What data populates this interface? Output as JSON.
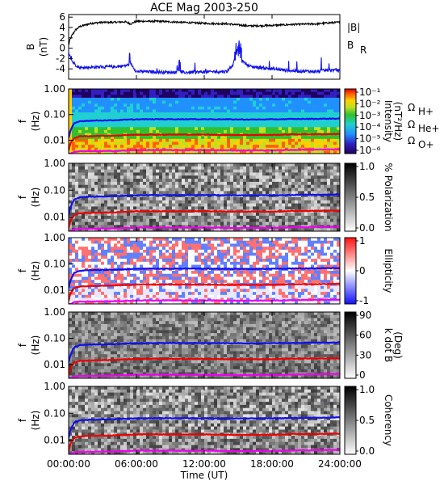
{
  "title": "ACE Mag 2003-250",
  "x_axis": {
    "label": "Time (UT)",
    "ticks": [
      "00:00:00",
      "06:00:00",
      "12:00:00",
      "18:00:00",
      "24:00:00"
    ],
    "range_hours": [
      0,
      24
    ]
  },
  "freq_ticks": [
    "1.00",
    "0.10",
    "0.01"
  ],
  "line_colors": {
    "h": "#1010ee",
    "he": "#ee0000",
    "o": "#ee00ee",
    "total": "#000000",
    "radial": "#1010ee"
  },
  "legend": {
    "total_field": "|B|",
    "radial_field_symbol": "B",
    "radial_field_sub": "R",
    "gyro_h": "Ω",
    "gyro_h_sub": "H+",
    "gyro_he": "Ω",
    "gyro_he_sub": "He+",
    "gyro_o": "Ω",
    "gyro_o_sub": "O+"
  },
  "panels": [
    {
      "kind": "line",
      "ylabel": "B",
      "yunit": "(nT)",
      "yticks": [
        "6",
        "4",
        "2",
        "0",
        "-2",
        "-4"
      ]
    },
    {
      "kind": "spectrogram",
      "ylabel": "f",
      "yunit": "(Hz)",
      "colorbar": "spectral",
      "cbar_label": "Intensity",
      "cbar_unit": "(nT²/Hz)",
      "cbar_ticks": [
        "10⁻¹",
        "10⁻²",
        "10⁻³",
        "10⁻⁴",
        "10⁻⁵",
        "10⁻⁶"
      ]
    },
    {
      "kind": "polarization",
      "ylabel": "f",
      "yunit": "(Hz)",
      "colorbar": "gray",
      "cbar_label": "% Polarization",
      "cbar_unit": "",
      "cbar_ticks": [
        "1.0",
        "0.5",
        "0.0"
      ]
    },
    {
      "kind": "ellipticity",
      "ylabel": "f",
      "yunit": "(Hz)",
      "colorbar": "bwr",
      "cbar_label": "Ellipticity",
      "cbar_unit": "",
      "cbar_ticks": [
        "1",
        "0",
        "-1"
      ]
    },
    {
      "kind": "kdotb",
      "ylabel": "f",
      "yunit": "(Hz)",
      "colorbar": "gray",
      "cbar_label": "k dot B",
      "cbar_unit": "(Deg)",
      "cbar_ticks": [
        "90",
        "60",
        "30",
        "0"
      ]
    },
    {
      "kind": "coherency",
      "ylabel": "f",
      "yunit": "(Hz)",
      "colorbar": "gray",
      "cbar_label": "Coherency",
      "cbar_unit": "",
      "cbar_ticks": [
        "1.0",
        "0.5",
        "0.0"
      ]
    }
  ],
  "chart_data": {
    "type": "heatmap",
    "title": "ACE Mag 2003-250",
    "xlabel": "Time (UT)",
    "x_range_hours": [
      0,
      24
    ],
    "field_panel": {
      "ylim": [
        -6,
        6.5
      ],
      "series": [
        {
          "name": "|B|",
          "x_hours": [
            0,
            0.1,
            0.3,
            0.6,
            1,
            2,
            3,
            4,
            5,
            5.5,
            6,
            8,
            10,
            12,
            14,
            15,
            16,
            18,
            20,
            22,
            23,
            24
          ],
          "values": [
            0.5,
            1.5,
            2.5,
            3.5,
            4.2,
            4.8,
            5.0,
            5.0,
            5.1,
            4.7,
            5.2,
            5.2,
            5.0,
            4.8,
            4.7,
            4.5,
            4.3,
            4.4,
            4.6,
            4.7,
            4.9,
            5.0
          ]
        },
        {
          "name": "B_R",
          "x_hours": [
            0,
            0.1,
            0.3,
            0.6,
            1,
            2,
            3,
            4,
            5,
            5.5,
            6,
            8,
            10,
            12,
            14,
            15,
            16,
            18,
            20,
            22,
            23,
            24
          ],
          "values": [
            -0.5,
            -1.5,
            -2.5,
            -3.2,
            -3.8,
            -3.7,
            -3.6,
            -3.6,
            -3.4,
            -3.0,
            -4.5,
            -4.6,
            -4.7,
            -4.6,
            -4.5,
            -2.0,
            -3.5,
            -4.0,
            -4.4,
            -4.5,
            -4.2,
            -4.3
          ]
        }
      ]
    },
    "freq_panels": {
      "ylim_hz": [
        0.003,
        1.0
      ],
      "yscale": "log",
      "gyro_lines": [
        {
          "name": "Ω H+",
          "x_hours": [
            0,
            0.2,
            0.5,
            1,
            2,
            4,
            6,
            8,
            10,
            12,
            14,
            16,
            18,
            20,
            22,
            24
          ],
          "values": [
            0.012,
            0.025,
            0.045,
            0.055,
            0.058,
            0.06,
            0.065,
            0.066,
            0.066,
            0.066,
            0.065,
            0.064,
            0.065,
            0.067,
            0.068,
            0.07
          ]
        },
        {
          "name": "Ω He+",
          "x_hours": [
            0,
            0.2,
            0.5,
            1,
            2,
            4,
            6,
            8,
            10,
            12,
            14,
            16,
            18,
            20,
            22,
            24
          ],
          "values": [
            0.004,
            0.008,
            0.012,
            0.014,
            0.0145,
            0.015,
            0.0165,
            0.0165,
            0.0165,
            0.0165,
            0.016,
            0.016,
            0.016,
            0.017,
            0.017,
            0.0175
          ]
        },
        {
          "name": "Ω O+",
          "x_hours": [
            0,
            0.2,
            0.5,
            1,
            2,
            4,
            6,
            8,
            10,
            12,
            14,
            16,
            18,
            20,
            22,
            24
          ],
          "values": [
            0.002,
            0.003,
            0.0035,
            0.0037,
            0.0037,
            0.0038,
            0.0041,
            0.0041,
            0.0041,
            0.0041,
            0.004,
            0.004,
            0.004,
            0.0042,
            0.0043,
            0.0044
          ]
        }
      ]
    }
  }
}
